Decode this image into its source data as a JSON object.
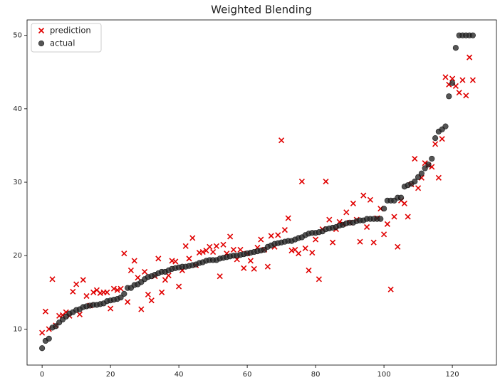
{
  "chart_data": {
    "type": "scatter",
    "title": "Weighted Blending",
    "x": [
      0,
      1,
      2,
      3,
      4,
      5,
      6,
      7,
      8,
      9,
      10,
      11,
      12,
      13,
      14,
      15,
      16,
      17,
      18,
      19,
      20,
      21,
      22,
      23,
      24,
      25,
      26,
      27,
      28,
      29,
      30,
      31,
      32,
      33,
      34,
      35,
      36,
      37,
      38,
      39,
      40,
      41,
      42,
      43,
      44,
      45,
      46,
      47,
      48,
      49,
      50,
      51,
      52,
      53,
      54,
      55,
      56,
      57,
      58,
      59,
      60,
      61,
      62,
      63,
      64,
      65,
      66,
      67,
      68,
      69,
      70,
      71,
      72,
      73,
      74,
      75,
      76,
      77,
      78,
      79,
      80,
      81,
      82,
      83,
      84,
      85,
      86,
      87,
      88,
      89,
      90,
      91,
      92,
      93,
      94,
      95,
      96,
      97,
      98,
      99,
      100,
      101,
      102,
      103,
      104,
      105,
      106,
      107,
      108,
      109,
      110,
      111,
      112,
      113,
      114,
      115,
      116,
      117,
      118,
      119,
      120,
      121,
      122,
      123,
      124,
      125,
      126
    ],
    "series": [
      {
        "name": "prediction",
        "color": "#e00000",
        "marker": "x",
        "values": [
          9.5,
          12.4,
          10.0,
          16.8,
          10.5,
          11.8,
          11.9,
          12.3,
          11.8,
          15.1,
          16.1,
          12.0,
          16.7,
          14.5,
          13.2,
          15.0,
          15.3,
          14.9,
          15.0,
          15.0,
          12.8,
          15.5,
          15.3,
          15.5,
          20.3,
          13.7,
          18.0,
          19.3,
          17.0,
          12.7,
          17.8,
          14.7,
          13.9,
          17.2,
          19.6,
          15.0,
          16.7,
          17.3,
          19.3,
          19.2,
          15.8,
          18.0,
          21.3,
          19.6,
          22.4,
          18.7,
          20.4,
          20.5,
          20.7,
          21.2,
          20.5,
          21.3,
          17.2,
          21.5,
          20.3,
          22.6,
          20.8,
          19.5,
          20.8,
          18.3,
          20.3,
          19.3,
          18.2,
          21.1,
          22.2,
          20.8,
          18.5,
          22.7,
          21.2,
          22.8,
          35.7,
          23.5,
          25.1,
          20.7,
          20.8,
          20.3,
          30.1,
          21.0,
          18.0,
          20.4,
          22.2,
          16.8,
          23.6,
          30.1,
          24.9,
          21.8,
          23.6,
          24.6,
          24.3,
          25.9,
          24.5,
          27.1,
          24.9,
          21.9,
          28.2,
          23.9,
          27.6,
          21.8,
          25.1,
          26.4,
          22.9,
          24.3,
          15.4,
          25.3,
          21.2,
          27.5,
          27.1,
          25.3,
          29.7,
          33.2,
          29.2,
          30.6,
          32.6,
          32.3,
          32.1,
          35.2,
          30.6,
          35.9,
          44.3,
          43.3,
          44.1,
          43.1,
          42.2,
          43.9,
          41.8,
          47.0,
          43.9
        ]
      },
      {
        "name": "actual",
        "color": "#2b2b2b",
        "marker": "o",
        "values": [
          7.4,
          8.4,
          8.7,
          10.2,
          10.4,
          10.9,
          11.3,
          11.7,
          12.1,
          12.3,
          12.6,
          12.7,
          13.0,
          13.1,
          13.2,
          13.3,
          13.3,
          13.4,
          13.5,
          13.8,
          13.9,
          14.0,
          14.1,
          14.3,
          14.8,
          15.6,
          15.6,
          16.0,
          16.1,
          16.4,
          16.8,
          17.1,
          17.2,
          17.4,
          17.6,
          17.8,
          17.8,
          18.0,
          18.2,
          18.3,
          18.4,
          18.5,
          18.5,
          18.6,
          18.7,
          18.8,
          19.0,
          19.1,
          19.3,
          19.4,
          19.4,
          19.4,
          19.6,
          19.7,
          19.8,
          19.9,
          20.0,
          20.0,
          20.1,
          20.2,
          20.3,
          20.4,
          20.5,
          20.6,
          20.7,
          20.8,
          21.2,
          21.4,
          21.6,
          21.7,
          21.8,
          21.9,
          22.0,
          22.0,
          22.2,
          22.4,
          22.5,
          22.8,
          23.0,
          23.1,
          23.1,
          23.2,
          23.3,
          23.6,
          23.7,
          23.8,
          23.9,
          24.1,
          24.2,
          24.4,
          24.5,
          24.5,
          24.7,
          24.8,
          24.8,
          25.0,
          25.0,
          25.0,
          25.0,
          25.0,
          26.4,
          27.5,
          27.5,
          27.5,
          27.9,
          27.9,
          29.4,
          29.6,
          29.8,
          30.1,
          30.7,
          31.2,
          31.9,
          32.4,
          33.2,
          36.0,
          36.9,
          37.2,
          37.6,
          41.7,
          43.5,
          48.3,
          50,
          50,
          50,
          50,
          50
        ]
      }
    ],
    "xlim": [
      -4.4,
      132.9
    ],
    "ylim": [
      5.1,
      52.1
    ],
    "xticks": [
      0,
      20,
      40,
      60,
      80,
      100,
      120
    ],
    "yticks": [
      10,
      20,
      30,
      40,
      50
    ],
    "legend": "upper left",
    "grid": false
  }
}
